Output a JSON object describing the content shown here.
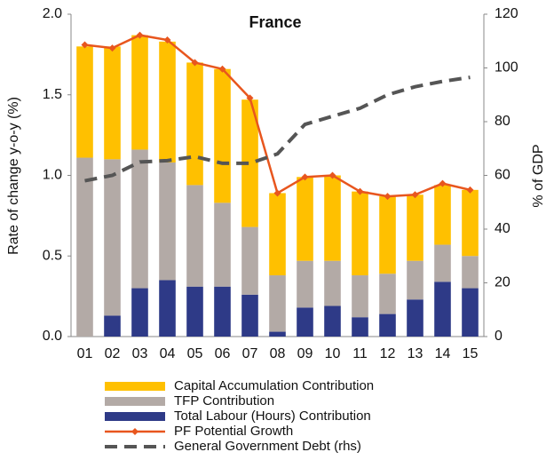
{
  "chart_data": {
    "type": "bar",
    "title": "France",
    "ylabel": "Rate of change y-o-y (%)",
    "y2label": "% of GDP",
    "categories": [
      "01",
      "02",
      "03",
      "04",
      "05",
      "06",
      "07",
      "08",
      "09",
      "10",
      "11",
      "12",
      "13",
      "14",
      "15"
    ],
    "ylim": [
      0,
      2.0
    ],
    "yticks": [
      {
        "value": 0,
        "label": "0.0"
      },
      0.5,
      {
        "value": 1,
        "label": "1.0"
      },
      1.5,
      {
        "value": 2,
        "label": "2.0"
      }
    ],
    "y2lim": [
      0,
      120
    ],
    "y2ticks": [
      0,
      20,
      40,
      60,
      80,
      100,
      120
    ],
    "series": [
      {
        "name": "Capital Accumulation Contribution",
        "type": "bar",
        "color": "#FFC000",
        "values": [
          0.69,
          0.7,
          0.71,
          0.75,
          0.76,
          0.83,
          0.79,
          0.51,
          0.52,
          0.53,
          0.52,
          0.48,
          0.41,
          0.37,
          0.41
        ]
      },
      {
        "name": "TFP Contribution",
        "type": "bar",
        "color": "#B3AAA6",
        "values": [
          1.11,
          0.97,
          0.86,
          0.73,
          0.63,
          0.52,
          0.42,
          0.35,
          0.29,
          0.28,
          0.26,
          0.25,
          0.24,
          0.23,
          0.2
        ]
      },
      {
        "name": "Total Labour (Hours) Contribution",
        "type": "bar",
        "color": "#2E3A87",
        "values": [
          0,
          0.13,
          0.3,
          0.35,
          0.31,
          0.31,
          0.26,
          0.03,
          0.18,
          0.19,
          0.12,
          0.14,
          0.23,
          0.34,
          0.3
        ]
      },
      {
        "name": "PF Potential Growth",
        "type": "line",
        "color": "#E8561E",
        "marker": "diamond",
        "values": [
          1.81,
          1.79,
          1.87,
          1.84,
          1.7,
          1.66,
          1.48,
          0.89,
          0.99,
          1.0,
          0.9,
          0.87,
          0.88,
          0.95,
          0.91
        ]
      },
      {
        "name": "General Government Debt (rhs)",
        "type": "line",
        "color": "#555555",
        "dashed": true,
        "axis": "y2",
        "values": [
          58,
          60,
          65,
          65.5,
          67,
          64.5,
          64.5,
          68,
          79,
          82,
          85,
          90,
          93,
          95,
          96.5
        ]
      }
    ]
  }
}
